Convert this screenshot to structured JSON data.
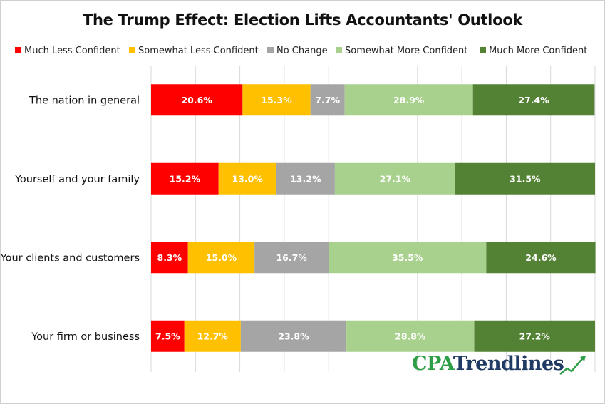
{
  "chart_data": {
    "type": "bar",
    "orientation": "horizontal",
    "stacked": true,
    "percent_stacked": true,
    "title": "The Trump Effect: Election Lifts Accountants' Outlook",
    "categories": [
      "The nation in general",
      "Yourself and your family",
      "Your clients and customers",
      "Your firm or business"
    ],
    "series": [
      {
        "name": "Much Less Confident",
        "color": "#ff0000",
        "values": [
          20.6,
          15.2,
          8.3,
          7.5
        ]
      },
      {
        "name": "Somewhat Less Confident",
        "color": "#ffc000",
        "values": [
          15.3,
          13.0,
          15.0,
          12.7
        ]
      },
      {
        "name": "No Change",
        "color": "#a5a5a5",
        "values": [
          7.7,
          13.2,
          16.7,
          23.8
        ]
      },
      {
        "name": "Somewhat More Confident",
        "color": "#a9d18e",
        "values": [
          28.9,
          27.1,
          35.5,
          28.8
        ]
      },
      {
        "name": "Much More Confident",
        "color": "#548235",
        "values": [
          27.4,
          31.5,
          24.6,
          27.2
        ]
      }
    ],
    "value_labels": [
      [
        "20.6%",
        "15.2%",
        "8.3%",
        "7.5%"
      ],
      [
        "15.3%",
        "13.0%",
        "15.0%",
        "12.7%"
      ],
      [
        "7.7%",
        "13.2%",
        "16.7%",
        "23.8%"
      ],
      [
        "28.9%",
        "27.1%",
        "35.5%",
        "28.8%"
      ],
      [
        "27.4%",
        "31.5%",
        "24.6%",
        "27.2%"
      ]
    ],
    "xlim": [
      0,
      100
    ],
    "grid": true,
    "legend_position": "top"
  },
  "logo": {
    "part1": "CPA",
    "part2": "Trendlines",
    "icon": "trend-arrow-icon"
  }
}
